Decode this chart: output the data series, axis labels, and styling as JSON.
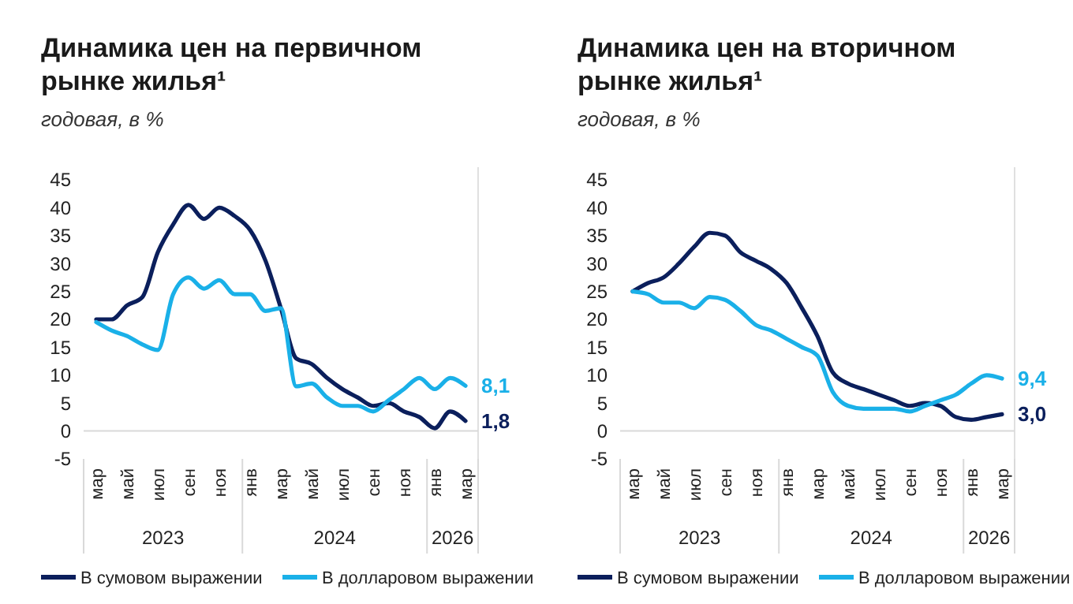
{
  "chart_data": [
    {
      "type": "line",
      "title": "Динамика цен на первичном рынке жилья¹",
      "subtitle": "годовая, в %",
      "categories": [
        "мар",
        null,
        "май",
        null,
        "июл",
        null,
        "сен",
        null,
        "ноя",
        null,
        "янв",
        null,
        "мар",
        null,
        "май",
        null,
        "июл",
        null,
        "сен",
        null,
        "ноя",
        null,
        "янв",
        null,
        "мар"
      ],
      "series": [
        {
          "name": "В сумовом выражении",
          "color": "#0b1f5c",
          "values": [
            20,
            20,
            22.5,
            24,
            32,
            37,
            40.5,
            38,
            40,
            38.5,
            36,
            30.5,
            22,
            13,
            12,
            9.5,
            7.5,
            6,
            4.5,
            5,
            3.5,
            2.5,
            0.5,
            3.5,
            1.8
          ],
          "value_labels": [
            null,
            null,
            null,
            null,
            null,
            null,
            null,
            null,
            null,
            null,
            null,
            null,
            null,
            null,
            null,
            null,
            null,
            null,
            null,
            null,
            null,
            null,
            null,
            null,
            "1,8"
          ]
        },
        {
          "name": "В долларовом выражении",
          "color": "#1ab0e8",
          "values": [
            19.5,
            18,
            17,
            15.5,
            14.5,
            24.5,
            27.5,
            25.5,
            27,
            24.5,
            24.5,
            21.5,
            22,
            8,
            8.5,
            6,
            4.5,
            4.5,
            3.5,
            5.5,
            7.5,
            9.5,
            7.5,
            9.5,
            8.1
          ],
          "value_labels": [
            null,
            null,
            null,
            null,
            null,
            null,
            null,
            null,
            null,
            null,
            null,
            null,
            null,
            null,
            null,
            null,
            null,
            null,
            null,
            null,
            null,
            null,
            null,
            null,
            "8,1"
          ]
        }
      ],
      "ylim": [
        -5,
        45
      ],
      "yticks": [
        -5,
        0,
        5,
        10,
        15,
        20,
        25,
        30,
        35,
        40,
        45
      ],
      "grid": false,
      "legend": "bottom",
      "line_style": "solid",
      "marker": "none",
      "annotations": [
        "2023",
        "2024",
        "2026"
      ]
    },
    {
      "type": "line",
      "title": "Динамика цен на вторичном рынке жилья¹",
      "subtitle": "годовая, в %",
      "categories": [
        "мар",
        null,
        "май",
        null,
        "июл",
        null,
        "сен",
        null,
        "ноя",
        null,
        "янв",
        null,
        "мар",
        null,
        "май",
        null,
        "июл",
        null,
        "сен",
        null,
        "ноя",
        null,
        "янв",
        null,
        "мар"
      ],
      "series": [
        {
          "name": "В сумовом выражении",
          "color": "#0b1f5c",
          "values": [
            25,
            26.5,
            27.5,
            30,
            33,
            35.5,
            35,
            32,
            30.5,
            29,
            26.5,
            22,
            17,
            10.5,
            8.5,
            7.5,
            6.5,
            5.5,
            4.5,
            5,
            4.5,
            2.5,
            2,
            2.5,
            3.0
          ],
          "value_labels": [
            null,
            null,
            null,
            null,
            null,
            null,
            null,
            null,
            null,
            null,
            null,
            null,
            null,
            null,
            null,
            null,
            null,
            null,
            null,
            null,
            null,
            null,
            null,
            null,
            "3,0"
          ]
        },
        {
          "name": "В долларовом выражении",
          "color": "#1ab0e8",
          "values": [
            25,
            24.5,
            23,
            23,
            22,
            24,
            23.5,
            21.5,
            19,
            18,
            16.5,
            15,
            13.5,
            7,
            4.5,
            4,
            4,
            4,
            3.5,
            4.5,
            5.5,
            6.5,
            8.5,
            10,
            9.4
          ],
          "value_labels": [
            null,
            null,
            null,
            null,
            null,
            null,
            null,
            null,
            null,
            null,
            null,
            null,
            null,
            null,
            null,
            null,
            null,
            null,
            null,
            null,
            null,
            null,
            null,
            null,
            "9,4"
          ]
        }
      ],
      "ylim": [
        -5,
        45
      ],
      "yticks": [
        -5,
        0,
        5,
        10,
        15,
        20,
        25,
        30,
        35,
        40,
        45
      ],
      "grid": false,
      "legend": "bottom",
      "line_style": "solid",
      "marker": "none",
      "annotations": [
        "2023",
        "2024",
        "2026"
      ]
    }
  ]
}
